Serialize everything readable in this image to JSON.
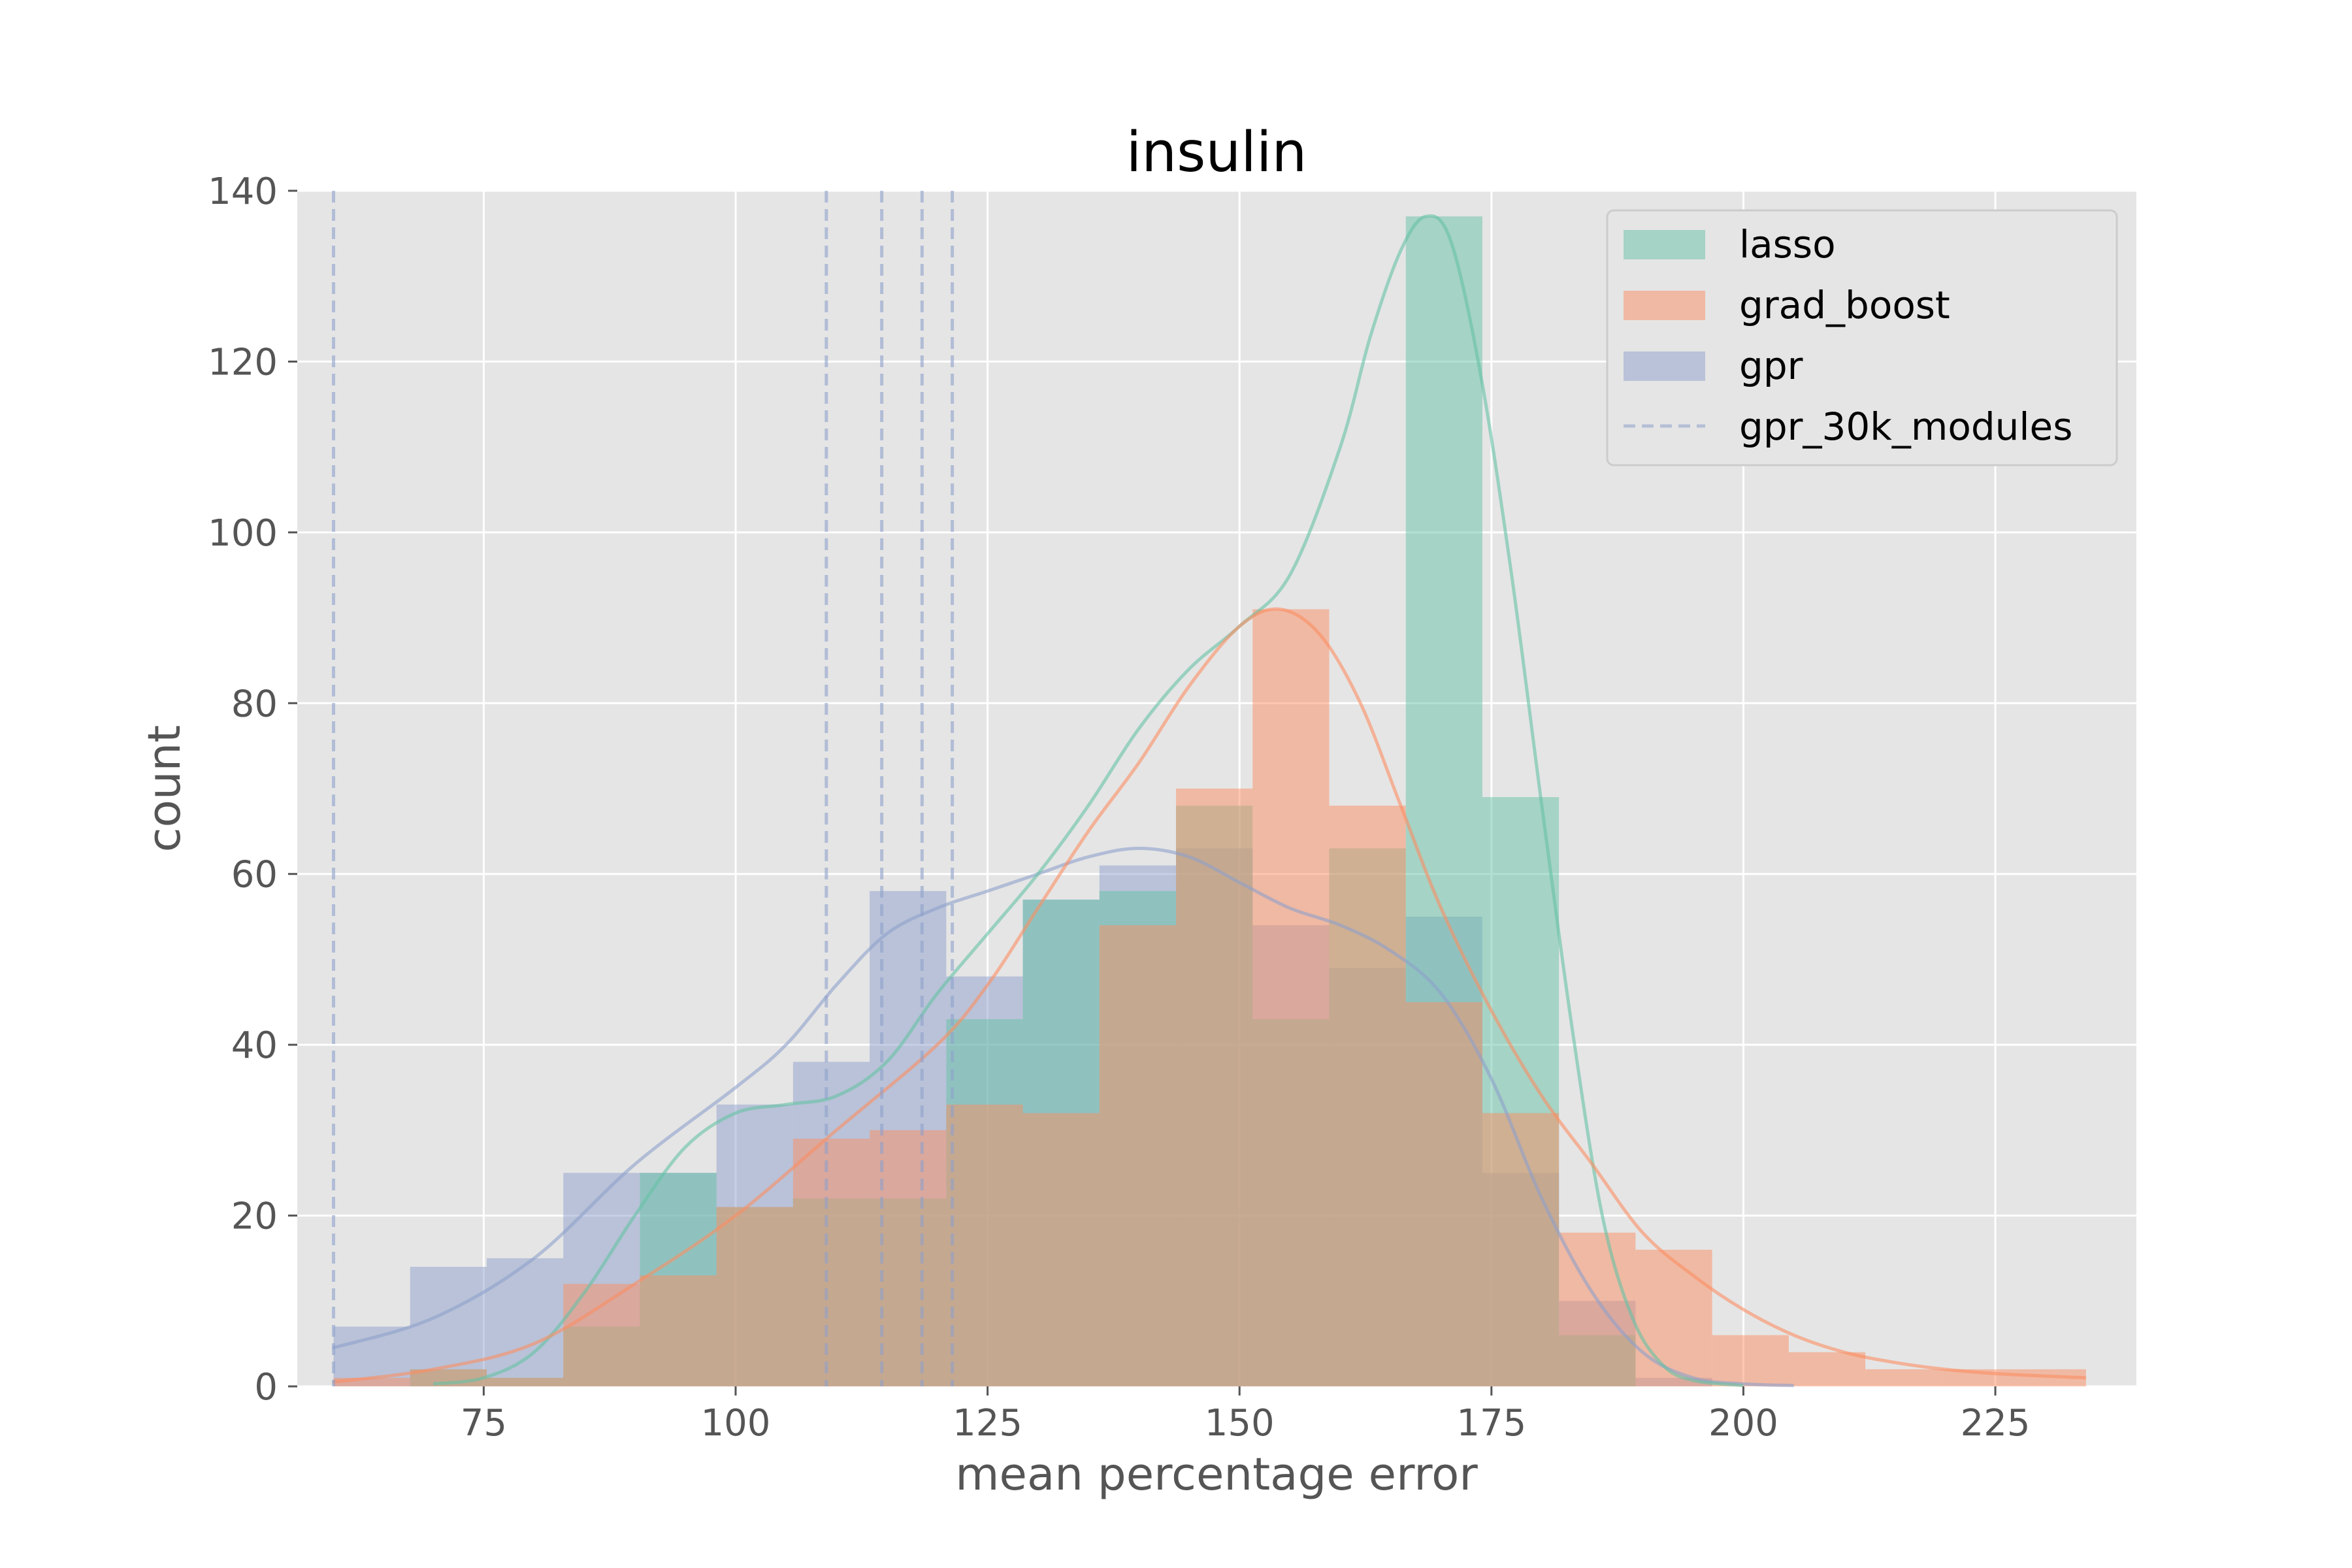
{
  "chart_data": {
    "type": "histogram",
    "title": "insulin",
    "xlabel": "mean percentage error",
    "ylabel": "count",
    "xlim": [
      56.5,
      239.0
    ],
    "ylim": [
      0,
      140
    ],
    "xticks": [
      75,
      100,
      125,
      150,
      175,
      200,
      225
    ],
    "yticks": [
      0,
      20,
      40,
      60,
      80,
      100,
      120,
      140
    ],
    "grid": true,
    "legend_position": "top-right",
    "series": [
      {
        "name": "gpr",
        "color": "#8da0cb",
        "bins": [
          {
            "x0": 60.1,
            "x1": 67.7,
            "count": 7
          },
          {
            "x0": 67.7,
            "x1": 75.3,
            "count": 14
          },
          {
            "x0": 75.3,
            "x1": 82.9,
            "count": 15
          },
          {
            "x0": 82.9,
            "x1": 90.5,
            "count": 25
          },
          {
            "x0": 90.5,
            "x1": 98.1,
            "count": 25
          },
          {
            "x0": 98.1,
            "x1": 105.7,
            "count": 33
          },
          {
            "x0": 105.7,
            "x1": 113.3,
            "count": 38
          },
          {
            "x0": 113.3,
            "x1": 120.9,
            "count": 58
          },
          {
            "x0": 120.9,
            "x1": 128.5,
            "count": 48
          },
          {
            "x0": 128.5,
            "x1": 136.1,
            "count": 57
          },
          {
            "x0": 136.1,
            "x1": 143.7,
            "count": 61
          },
          {
            "x0": 143.7,
            "x1": 151.3,
            "count": 63
          },
          {
            "x0": 151.3,
            "x1": 158.9,
            "count": 54
          },
          {
            "x0": 158.9,
            "x1": 166.5,
            "count": 49
          },
          {
            "x0": 166.5,
            "x1": 174.1,
            "count": 55
          },
          {
            "x0": 174.1,
            "x1": 181.7,
            "count": 25
          },
          {
            "x0": 181.7,
            "x1": 189.3,
            "count": 10
          },
          {
            "x0": 189.3,
            "x1": 196.9,
            "count": 1
          }
        ],
        "kde": [
          [
            60,
            4.5
          ],
          [
            70,
            8
          ],
          [
            80,
            15
          ],
          [
            90,
            26
          ],
          [
            100,
            35
          ],
          [
            105,
            40
          ],
          [
            110,
            47
          ],
          [
            115,
            53
          ],
          [
            120,
            56
          ],
          [
            125,
            58
          ],
          [
            130,
            60
          ],
          [
            135,
            62
          ],
          [
            140,
            63
          ],
          [
            145,
            62
          ],
          [
            150,
            59
          ],
          [
            155,
            56
          ],
          [
            160,
            54
          ],
          [
            165,
            51
          ],
          [
            170,
            46
          ],
          [
            175,
            36
          ],
          [
            180,
            22
          ],
          [
            185,
            11
          ],
          [
            190,
            4
          ],
          [
            195,
            1
          ],
          [
            200,
            0.3
          ],
          [
            205,
            0.1
          ]
        ]
      },
      {
        "name": "lasso",
        "color": "#66c2a5",
        "bins": [
          {
            "x0": 67.7,
            "x1": 75.3,
            "count": 2
          },
          {
            "x0": 75.3,
            "x1": 82.9,
            "count": 1
          },
          {
            "x0": 82.9,
            "x1": 90.5,
            "count": 7
          },
          {
            "x0": 90.5,
            "x1": 98.1,
            "count": 25
          },
          {
            "x0": 98.1,
            "x1": 105.7,
            "count": 21
          },
          {
            "x0": 105.7,
            "x1": 113.3,
            "count": 22
          },
          {
            "x0": 113.3,
            "x1": 120.9,
            "count": 22
          },
          {
            "x0": 120.9,
            "x1": 128.5,
            "count": 43
          },
          {
            "x0": 128.5,
            "x1": 136.1,
            "count": 57
          },
          {
            "x0": 136.1,
            "x1": 143.7,
            "count": 58
          },
          {
            "x0": 143.7,
            "x1": 151.3,
            "count": 68
          },
          {
            "x0": 151.3,
            "x1": 158.9,
            "count": 43
          },
          {
            "x0": 158.9,
            "x1": 166.5,
            "count": 63
          },
          {
            "x0": 166.5,
            "x1": 174.1,
            "count": 137
          },
          {
            "x0": 174.1,
            "x1": 181.7,
            "count": 69
          },
          {
            "x0": 181.7,
            "x1": 189.3,
            "count": 6
          }
        ],
        "kde": [
          [
            70,
            0.3
          ],
          [
            75,
            1
          ],
          [
            80,
            4
          ],
          [
            85,
            11
          ],
          [
            90,
            20
          ],
          [
            95,
            28
          ],
          [
            100,
            32
          ],
          [
            105,
            33
          ],
          [
            110,
            34
          ],
          [
            115,
            38
          ],
          [
            120,
            46
          ],
          [
            125,
            53
          ],
          [
            130,
            60
          ],
          [
            135,
            68
          ],
          [
            140,
            77
          ],
          [
            145,
            84
          ],
          [
            150,
            89
          ],
          [
            155,
            95
          ],
          [
            160,
            110
          ],
          [
            163,
            123
          ],
          [
            166,
            133
          ],
          [
            168.5,
            137
          ],
          [
            171,
            134
          ],
          [
            174,
            118
          ],
          [
            177,
            95
          ],
          [
            180,
            68
          ],
          [
            183,
            42
          ],
          [
            186,
            20
          ],
          [
            189,
            8
          ],
          [
            192,
            2.5
          ],
          [
            195,
            0.7
          ],
          [
            200,
            0.1
          ]
        ]
      },
      {
        "name": "grad_boost",
        "color": "#fc8d62",
        "bins": [
          {
            "x0": 60.1,
            "x1": 67.7,
            "count": 1
          },
          {
            "x0": 67.7,
            "x1": 75.3,
            "count": 2
          },
          {
            "x0": 75.3,
            "x1": 82.9,
            "count": 1
          },
          {
            "x0": 82.9,
            "x1": 90.5,
            "count": 12
          },
          {
            "x0": 90.5,
            "x1": 98.1,
            "count": 13
          },
          {
            "x0": 98.1,
            "x1": 105.7,
            "count": 21
          },
          {
            "x0": 105.7,
            "x1": 113.3,
            "count": 29
          },
          {
            "x0": 113.3,
            "x1": 120.9,
            "count": 30
          },
          {
            "x0": 120.9,
            "x1": 128.5,
            "count": 33
          },
          {
            "x0": 128.5,
            "x1": 136.1,
            "count": 32
          },
          {
            "x0": 136.1,
            "x1": 143.7,
            "count": 54
          },
          {
            "x0": 143.7,
            "x1": 151.3,
            "count": 70
          },
          {
            "x0": 151.3,
            "x1": 158.9,
            "count": 91
          },
          {
            "x0": 158.9,
            "x1": 166.5,
            "count": 68
          },
          {
            "x0": 166.5,
            "x1": 174.1,
            "count": 45
          },
          {
            "x0": 174.1,
            "x1": 181.7,
            "count": 32
          },
          {
            "x0": 181.7,
            "x1": 189.3,
            "count": 18
          },
          {
            "x0": 189.3,
            "x1": 196.9,
            "count": 16
          },
          {
            "x0": 196.9,
            "x1": 204.5,
            "count": 6
          },
          {
            "x0": 204.5,
            "x1": 212.1,
            "count": 4
          },
          {
            "x0": 212.1,
            "x1": 219.7,
            "count": 2
          },
          {
            "x0": 219.7,
            "x1": 227.3,
            "count": 2
          },
          {
            "x0": 227.3,
            "x1": 234.0,
            "count": 2
          }
        ],
        "kde": [
          [
            60,
            0.5
          ],
          [
            70,
            2
          ],
          [
            80,
            5
          ],
          [
            90,
            12
          ],
          [
            100,
            20
          ],
          [
            110,
            30
          ],
          [
            120,
            40
          ],
          [
            125,
            47
          ],
          [
            130,
            56
          ],
          [
            135,
            65
          ],
          [
            140,
            73
          ],
          [
            145,
            82
          ],
          [
            150,
            89
          ],
          [
            154,
            91
          ],
          [
            158,
            88
          ],
          [
            162,
            80
          ],
          [
            166,
            68
          ],
          [
            170,
            56
          ],
          [
            175,
            44
          ],
          [
            180,
            34
          ],
          [
            185,
            26
          ],
          [
            190,
            18
          ],
          [
            195,
            13
          ],
          [
            200,
            9
          ],
          [
            205,
            6
          ],
          [
            210,
            4
          ],
          [
            215,
            2.8
          ],
          [
            220,
            2
          ],
          [
            225,
            1.5
          ],
          [
            230,
            1.2
          ],
          [
            234,
            1
          ]
        ]
      }
    ],
    "vlines": {
      "name": "gpr_30k_modules",
      "color": "#8da0cb",
      "style": "dashed",
      "x": [
        60.1,
        109.0,
        114.5,
        118.5,
        121.5
      ]
    }
  }
}
